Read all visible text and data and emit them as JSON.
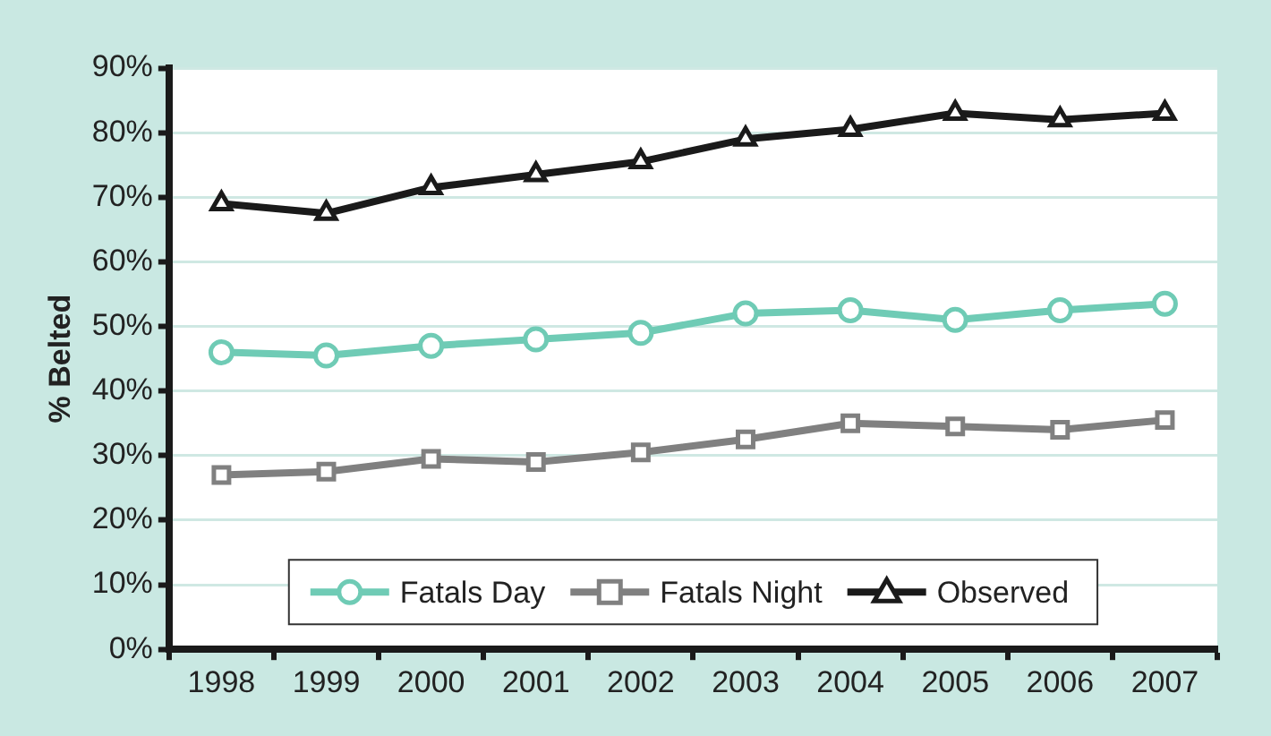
{
  "chart_data": {
    "type": "line",
    "ylabel": "% Belted",
    "categories": [
      "1998",
      "1999",
      "2000",
      "2001",
      "2002",
      "2003",
      "2004",
      "2005",
      "2006",
      "2007"
    ],
    "series": [
      {
        "name": "Fatals Day",
        "color": "#6fcbb5",
        "marker": "circle",
        "values": [
          46,
          45.5,
          47,
          48,
          49,
          52,
          52.5,
          51,
          52.5,
          53.5
        ]
      },
      {
        "name": "Fatals Night",
        "color": "#808080",
        "marker": "square",
        "values": [
          27,
          27.5,
          29.5,
          29,
          30.5,
          32.5,
          35,
          34.5,
          34,
          35.5
        ]
      },
      {
        "name": "Observed",
        "color": "#1a1a1a",
        "marker": "triangle",
        "values": [
          69,
          67.5,
          71.5,
          73.5,
          75.5,
          79,
          80.5,
          83,
          82,
          83
        ]
      }
    ],
    "ylim": [
      0,
      90
    ],
    "yticks": [
      {
        "value": 0,
        "label": "0%"
      },
      {
        "value": 10,
        "label": "10%"
      },
      {
        "value": 20,
        "label": "20%"
      },
      {
        "value": 30,
        "label": "30%"
      },
      {
        "value": 40,
        "label": "40%"
      },
      {
        "value": 50,
        "label": "50%"
      },
      {
        "value": 60,
        "label": "60%"
      },
      {
        "value": 70,
        "label": "70%"
      },
      {
        "value": 80,
        "label": "80%"
      },
      {
        "value": 90,
        "label": "90%"
      }
    ],
    "grid": "y",
    "legend": "bottom",
    "line_style": "solid"
  }
}
